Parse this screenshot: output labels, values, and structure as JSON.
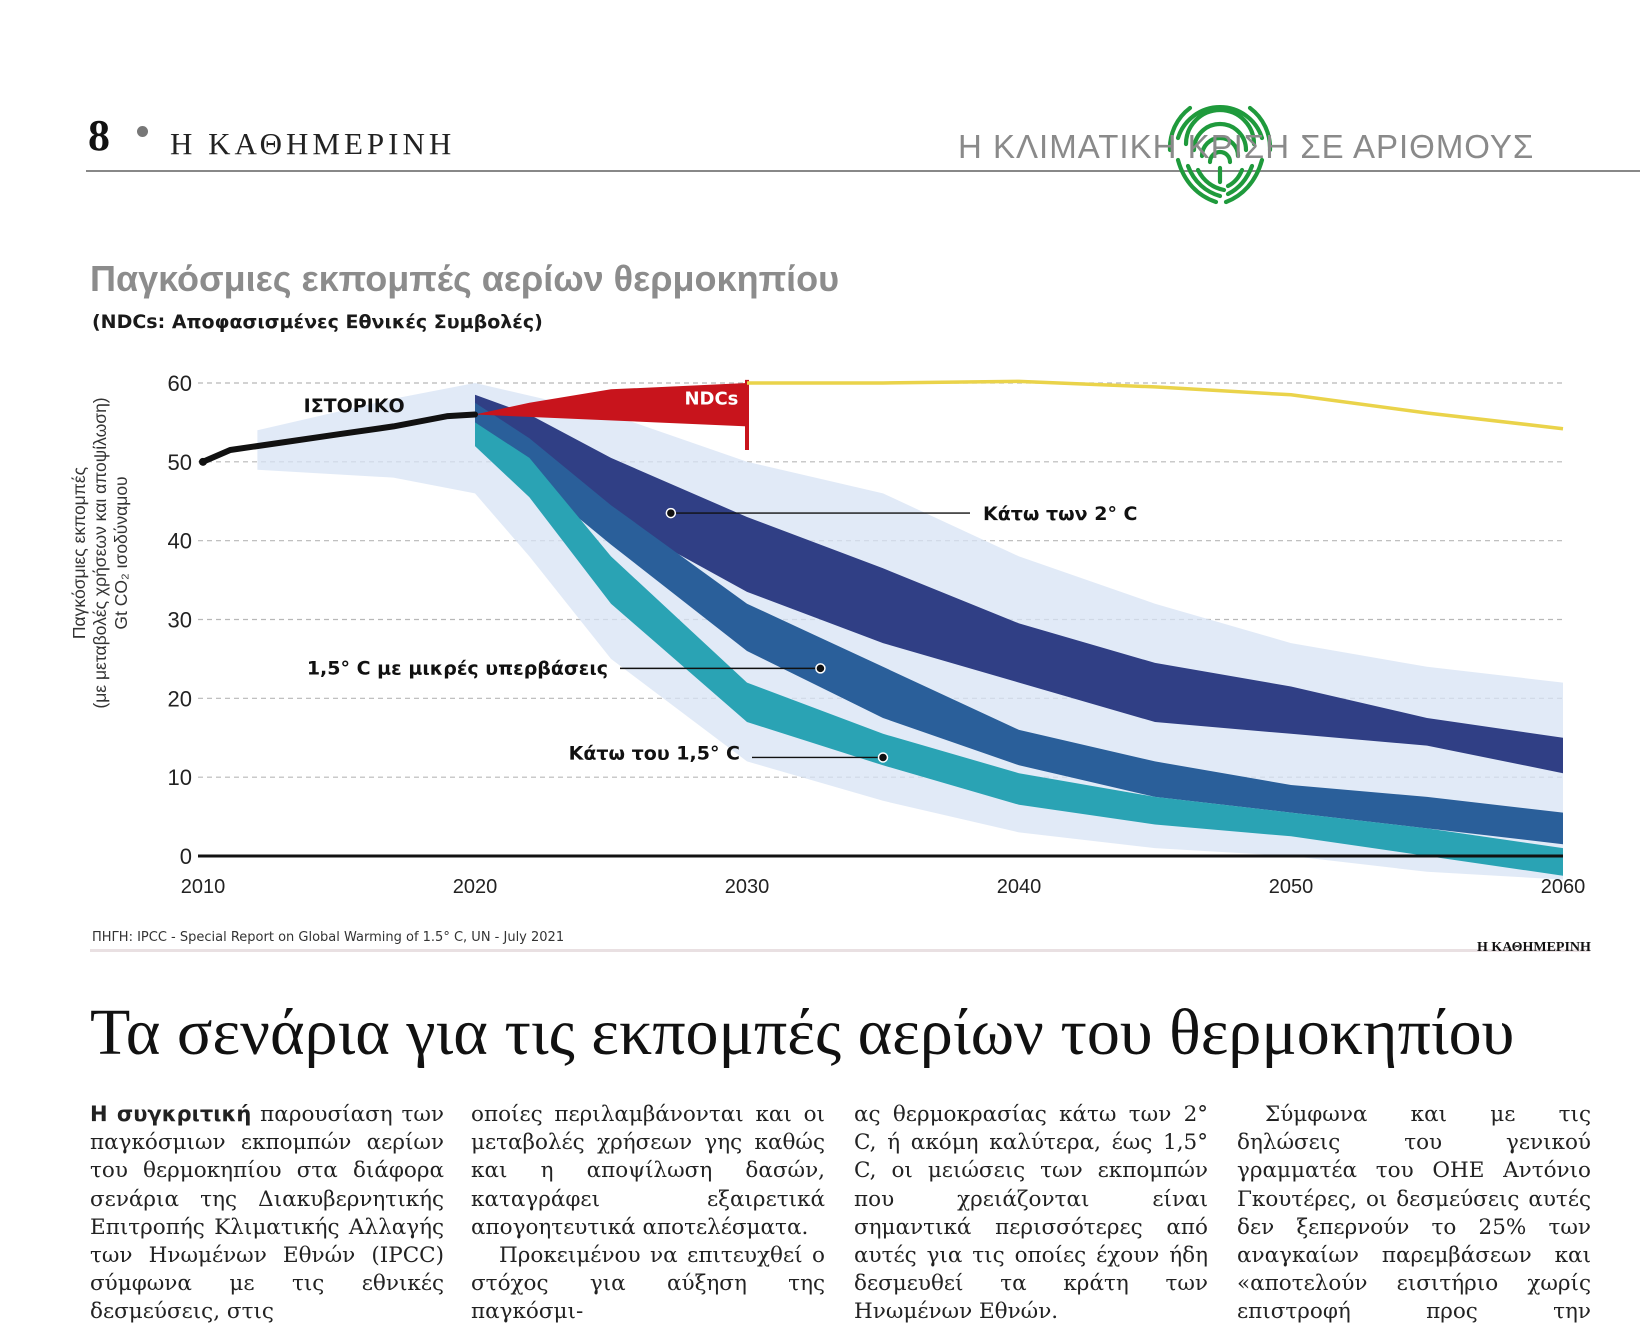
{
  "masthead": {
    "page_number": "8",
    "newspaper": "Η ΚΑΘΗΜΕΡΙΝΗ",
    "section": "Η ΚΛΙΜΑΤΙΚΗ ΚΡΙΣΗ ΣΕ ΑΡΙΘΜΟΥΣ"
  },
  "colors": {
    "history": "#111111",
    "ndcs": "#c8141c",
    "ndcs_continuation": "#ead34a",
    "below_2c": "#303f85",
    "overshoot_15c": "#2a5f9a",
    "below_15c": "#2aa3b4",
    "uncertainty": "#d7e3f4",
    "logo": "#1f9a3c"
  },
  "chart_data": {
    "type": "line",
    "title": "Παγκόσμιες εκπομπές αερίων θερμοκηπίου",
    "subtitle": "(NDCs: Αποφασισμένες Εθνικές Συμβολές)",
    "ylabel_lines": [
      "Παγκόσμιες εκπομπές",
      "(με μεταβολές χρήσεων και αποψίλωση)",
      "Gt CO₂ ισοδύναμου"
    ],
    "xlim": [
      2010,
      2060
    ],
    "ylim": [
      0,
      60
    ],
    "x_ticks": [
      2010,
      2020,
      2030,
      2040,
      2050,
      2060
    ],
    "y_ticks": [
      0,
      10,
      20,
      30,
      40,
      50,
      60
    ],
    "grid": "horizontal dashed",
    "series": [
      {
        "key": "history",
        "name": "ΙΣΤΟΡΙΚΟ",
        "style": "line",
        "points": [
          [
            2010,
            50
          ],
          [
            2011,
            51.5
          ],
          [
            2013,
            52.5
          ],
          [
            2015,
            53.5
          ],
          [
            2017,
            54.5
          ],
          [
            2019,
            55.8
          ],
          [
            2020,
            56
          ]
        ]
      },
      {
        "key": "ndcs",
        "name": "NDCs",
        "style": "wedge",
        "points": [
          [
            2020,
            56
          ],
          [
            2022,
            57.5
          ],
          [
            2025,
            59.2
          ],
          [
            2030,
            60
          ]
        ],
        "lower_2030": 54.5
      },
      {
        "key": "ndcs_continuation",
        "style": "line",
        "points": [
          [
            2030,
            60
          ],
          [
            2035,
            60
          ],
          [
            2040,
            60.2
          ],
          [
            2045,
            59.5
          ],
          [
            2050,
            58.5
          ],
          [
            2055,
            56.2
          ],
          [
            2060,
            54.2
          ]
        ]
      },
      {
        "key": "below_2c",
        "name": "Κάτω των 2° C",
        "style": "band",
        "upper": [
          [
            2020,
            58.5
          ],
          [
            2022,
            56
          ],
          [
            2025,
            50.5
          ],
          [
            2030,
            43
          ],
          [
            2035,
            36.5
          ],
          [
            2040,
            29.5
          ],
          [
            2045,
            24.5
          ],
          [
            2050,
            21.5
          ],
          [
            2055,
            17.5
          ],
          [
            2060,
            15
          ]
        ],
        "lower": [
          [
            2060,
            10.5
          ],
          [
            2055,
            14
          ],
          [
            2050,
            15.5
          ],
          [
            2045,
            17
          ],
          [
            2040,
            22
          ],
          [
            2035,
            27
          ],
          [
            2030,
            33.5
          ],
          [
            2025,
            43
          ],
          [
            2022,
            50
          ],
          [
            2020,
            55
          ]
        ]
      },
      {
        "key": "overshoot_15c",
        "name": "1,5° C με μικρές υπερβάσεις",
        "style": "band",
        "upper": [
          [
            2020,
            57.5
          ],
          [
            2022,
            53
          ],
          [
            2025,
            44.5
          ],
          [
            2030,
            32
          ],
          [
            2035,
            24
          ],
          [
            2040,
            16
          ],
          [
            2045,
            12
          ],
          [
            2050,
            9
          ],
          [
            2055,
            7.5
          ],
          [
            2060,
            5.5
          ]
        ],
        "lower": [
          [
            2060,
            1.5
          ],
          [
            2055,
            3.5
          ],
          [
            2050,
            5.5
          ],
          [
            2045,
            7.5
          ],
          [
            2040,
            11.5
          ],
          [
            2035,
            17.5
          ],
          [
            2030,
            26
          ],
          [
            2025,
            39.5
          ],
          [
            2022,
            48
          ],
          [
            2020,
            53.5
          ]
        ]
      },
      {
        "key": "below_15c",
        "name": "Κάτω του 1,5° C",
        "style": "band",
        "upper": [
          [
            2020,
            55
          ],
          [
            2022,
            50.5
          ],
          [
            2025,
            38
          ],
          [
            2030,
            22
          ],
          [
            2035,
            15.5
          ],
          [
            2040,
            10.5
          ],
          [
            2045,
            7.5
          ],
          [
            2050,
            5.5
          ],
          [
            2055,
            3.5
          ],
          [
            2060,
            1
          ]
        ],
        "lower": [
          [
            2060,
            -2.5
          ],
          [
            2055,
            0
          ],
          [
            2050,
            2.5
          ],
          [
            2045,
            4
          ],
          [
            2040,
            6.5
          ],
          [
            2035,
            11.5
          ],
          [
            2030,
            17
          ],
          [
            2025,
            32
          ],
          [
            2022,
            45.5
          ],
          [
            2020,
            52
          ]
        ]
      }
    ],
    "uncertainty_band": {
      "upper": [
        [
          2012,
          54
        ],
        [
          2017,
          58
        ],
        [
          2020,
          60
        ],
        [
          2025,
          56
        ],
        [
          2030,
          50
        ],
        [
          2035,
          46
        ],
        [
          2040,
          38
        ],
        [
          2045,
          32
        ],
        [
          2050,
          27
        ],
        [
          2055,
          24
        ],
        [
          2060,
          22
        ]
      ],
      "lower": [
        [
          2060,
          -3
        ],
        [
          2055,
          -2
        ],
        [
          2050,
          0
        ],
        [
          2045,
          1
        ],
        [
          2040,
          3
        ],
        [
          2035,
          7
        ],
        [
          2030,
          12
        ],
        [
          2025,
          25
        ],
        [
          2022,
          38
        ],
        [
          2020,
          46
        ],
        [
          2017,
          48
        ],
        [
          2012,
          49
        ]
      ]
    },
    "annotations": [
      {
        "key": "history_label",
        "text": "ΙΣΤΟΡΙΚΟ"
      },
      {
        "key": "ndcs_label",
        "text": "NDCs"
      },
      {
        "key": "below_2c_label",
        "text": "Κάτω των 2° C",
        "at": [
          2027.2,
          43.5
        ]
      },
      {
        "key": "overshoot_label",
        "text": "1,5° C με μικρές υπερβάσεις",
        "at": [
          2032.7,
          23.8
        ]
      },
      {
        "key": "below_15c_label",
        "text": "Κάτω του 1,5° C",
        "at": [
          2035,
          12.5
        ]
      }
    ]
  },
  "source": "ΠΗΓΗ: IPCC - Special Report on Global Warming of 1.5° C, UN - July 2021",
  "credit": "Η ΚΑΘΗΜΕΡΙΝΗ",
  "article": {
    "headline": "Τα σενάρια για τις εκπομπές αερίων του θερμοκηπίου",
    "lead_bold": "Η συγκριτική",
    "col1": "παρουσίαση των παγκόσμιων εκπομπών αερίων του θερμοκηπίου στα διάφορα σενάρια της Διακυβερνητικής Επιτροπής Κλιματικής Αλλαγής των Ηνωμένων Εθνών (IPCC) σύμφωνα με τις εθνικές δεσμεύσεις, στις",
    "col2a": "οποίες περιλαμβάνονται και οι μεταβολές χρήσεων γης καθώς και η αποψίλωση δασών, καταγράφει εξαιρετικά απογοητευτικά αποτελέσματα.",
    "col2b": "Προκειμένου να επιτευχθεί ο στόχος για αύξηση της παγκόσμι-",
    "col3": "ας θερμοκρασίας κάτω των 2° C, ή ακόμη καλύτερα, έως 1,5° C, οι μειώσεις των εκπομπών που χρειάζονται είναι σημαντικά περισσότερες από αυτές για τις οποίες έχουν ήδη δεσμευθεί τα κράτη των Ηνωμένων Εθνών.",
    "col4": "Σύμφωνα και με τις δηλώσεις του γενικού γραμματέα του ΟΗΕ Αντόνιο Γκουτέρες, οι δεσμεύσεις αυτές δεν ξεπερνούν το 25% των αναγκαίων παρεμβάσεων και «αποτελούν εισιτήριο χωρίς επιστροφή προς την καταστροφή»."
  }
}
